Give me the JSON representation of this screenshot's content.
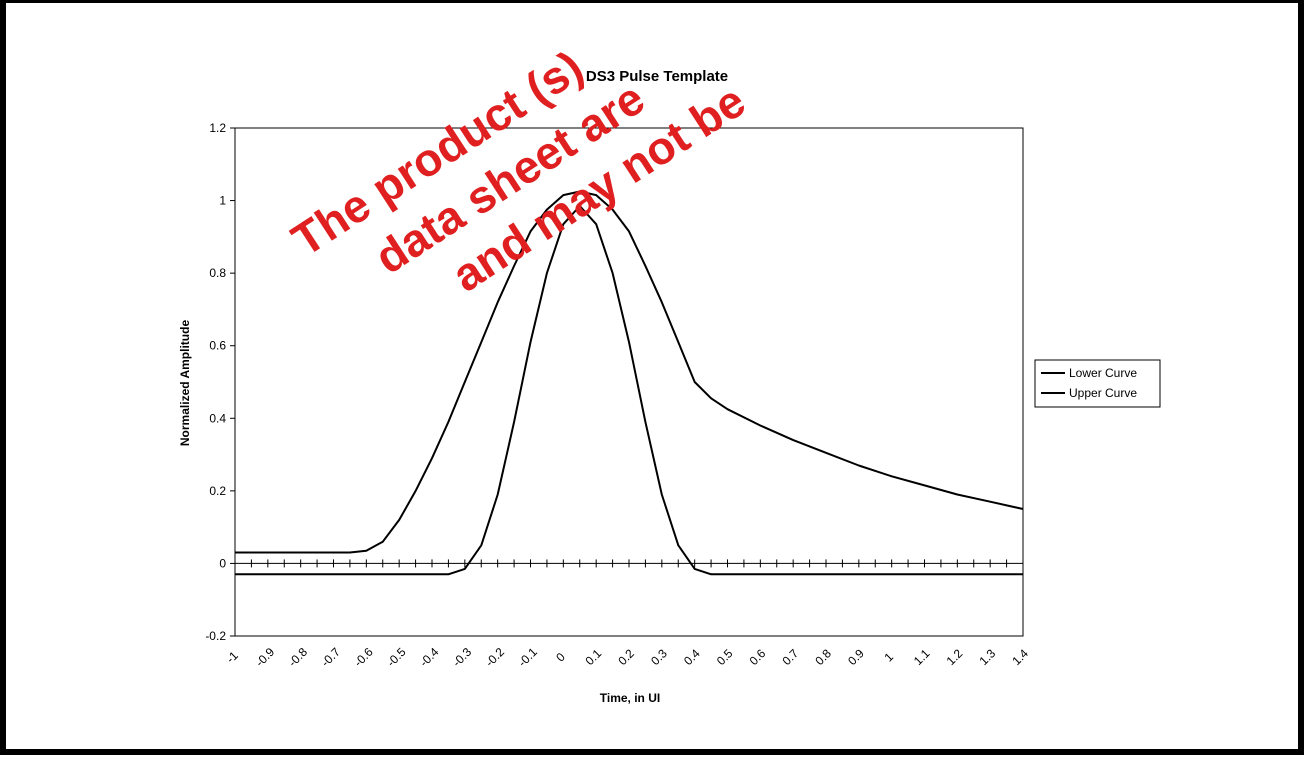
{
  "chart_data": {
    "type": "line",
    "title": "DS3 Pulse Template",
    "xlabel": "Time, in UI",
    "ylabel": "Normalized Amplitude",
    "xlim": [
      -1,
      1.4
    ],
    "ylim": [
      -0.2,
      1.2
    ],
    "y_ticks": [
      "1.2",
      "1",
      "0.8",
      "0.6",
      "0.4",
      "0.2",
      "0",
      "-0.2"
    ],
    "x_ticks": [
      "-1",
      "-0.9",
      "-0.8",
      "-0.7",
      "-0.6",
      "-0.5",
      "-0.4",
      "-0.3",
      "-0.2",
      "-0.1",
      "0",
      "0.1",
      "0.2",
      "0.3",
      "0.4",
      "0.5",
      "0.6",
      "0.7",
      "0.8",
      "0.9",
      "1",
      "1.1",
      "1.2",
      "1.3",
      "1.4"
    ],
    "grid": false,
    "legend_position": "right",
    "series": [
      {
        "name": "Lower Curve",
        "color": "#000000",
        "x": [
          -1,
          -0.35,
          -0.3,
          -0.25,
          -0.2,
          -0.15,
          -0.1,
          -0.05,
          0,
          0.05,
          0.1,
          0.15,
          0.2,
          0.25,
          0.3,
          0.35,
          0.4,
          0.45,
          1.4
        ],
        "y": [
          -0.03,
          -0.03,
          -0.015,
          0.05,
          0.19,
          0.39,
          0.61,
          0.8,
          0.935,
          0.985,
          0.935,
          0.8,
          0.61,
          0.39,
          0.19,
          0.05,
          -0.015,
          -0.03,
          -0.03
        ]
      },
      {
        "name": "Upper Curve",
        "color": "#000000",
        "x": [
          -1,
          -0.7,
          -0.65,
          -0.6,
          -0.55,
          -0.5,
          -0.45,
          -0.4,
          -0.35,
          -0.3,
          -0.25,
          -0.2,
          -0.15,
          -0.1,
          -0.05,
          0,
          0.05,
          0.1,
          0.15,
          0.2,
          0.25,
          0.3,
          0.35,
          0.4,
          0.45,
          0.5,
          0.6,
          0.7,
          0.8,
          0.9,
          1.0,
          1.1,
          1.2,
          1.3,
          1.4
        ],
        "y": [
          0.03,
          0.03,
          0.03,
          0.035,
          0.06,
          0.12,
          0.2,
          0.29,
          0.39,
          0.5,
          0.61,
          0.72,
          0.82,
          0.915,
          0.975,
          1.015,
          1.025,
          1.015,
          0.975,
          0.915,
          0.82,
          0.72,
          0.61,
          0.5,
          0.455,
          0.425,
          0.38,
          0.34,
          0.305,
          0.27,
          0.24,
          0.215,
          0.19,
          0.17,
          0.15
        ]
      }
    ]
  },
  "watermark": {
    "line1": "The product (s)",
    "line2": "data sheet are",
    "line3": "and may not be"
  }
}
